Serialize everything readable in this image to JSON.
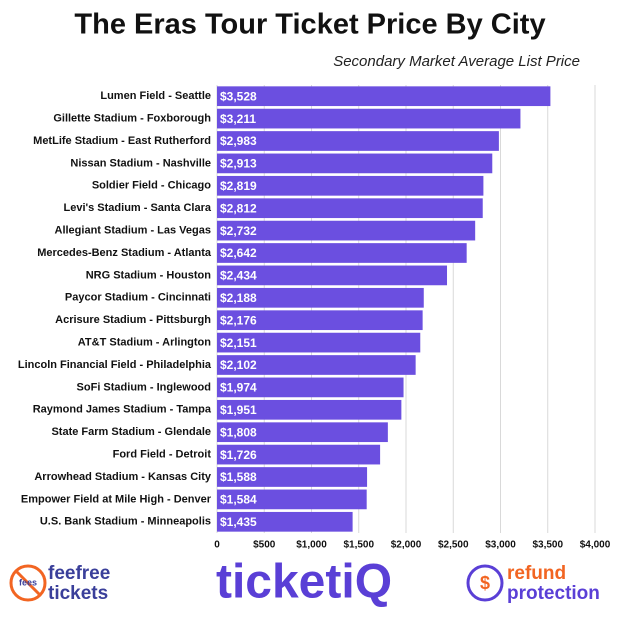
{
  "chart_data": {
    "type": "bar",
    "orientation": "horizontal",
    "title": "The Eras Tour Ticket Price By City",
    "subtitle": "Secondary Market Average List Price",
    "categories": [
      "Lumen Field - Seattle",
      "Gillette Stadium - Foxborough",
      "MetLife Stadium - East Rutherford",
      "Nissan Stadium - Nashville",
      "Soldier Field - Chicago",
      "Levi's Stadium - Santa Clara",
      "Allegiant Stadium - Las Vegas",
      "Mercedes-Benz Stadium - Atlanta",
      "NRG Stadium - Houston",
      "Paycor Stadium - Cincinnati",
      "Acrisure Stadium - Pittsburgh",
      "AT&T Stadium - Arlington",
      "Lincoln Financial Field - Philadelphia",
      "SoFi Stadium - Inglewood",
      "Raymond James Stadium - Tampa",
      "State Farm Stadium - Glendale",
      "Ford Field - Detroit",
      "Arrowhead Stadium - Kansas City",
      "Empower Field at Mile High - Denver",
      "U.S. Bank Stadium - Minneapolis"
    ],
    "values": [
      3528,
      3211,
      2983,
      2913,
      2819,
      2812,
      2732,
      2642,
      2434,
      2188,
      2176,
      2151,
      2102,
      1974,
      1951,
      1808,
      1726,
      1588,
      1584,
      1435
    ],
    "value_labels": [
      "$3,528",
      "$3,211",
      "$2,983",
      "$2,913",
      "$2,819",
      "$2,812",
      "$2,732",
      "$2,642",
      "$2,434",
      "$2,188",
      "$2,176",
      "$2,151",
      "$2,102",
      "$1,974",
      "$1,951",
      "$1,808",
      "$1,726",
      "$1,588",
      "$1,584",
      "$1,435"
    ],
    "color": "#6b4fe0",
    "xlim": [
      0,
      4000
    ],
    "xticks": [
      0,
      {
        "value": 500,
        "label": "$500"
      },
      {
        "value": 1000,
        "label": "$1,000"
      },
      {
        "value": 1500,
        "label": "$1,500"
      },
      {
        "value": 2000,
        "label": "$2,000"
      },
      {
        "value": 2500,
        "label": "$2,500"
      },
      {
        "value": 3000,
        "label": "$3,000"
      },
      {
        "value": 3500,
        "label": "$3,500"
      },
      {
        "value": 4000,
        "label": "$4,000"
      }
    ],
    "grid": true
  },
  "footer": {
    "left_logo": [
      "fees",
      "feefree",
      "tickets"
    ],
    "center_logo": "ticketiQ",
    "right_logo": [
      "$",
      "refund",
      "protection"
    ]
  }
}
